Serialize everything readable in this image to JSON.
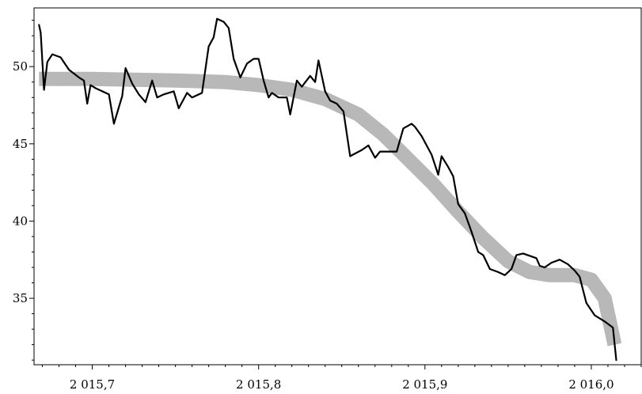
{
  "chart_data": {
    "type": "line",
    "title": "",
    "xlabel": "",
    "ylabel": "",
    "xlim": [
      2015.665,
      2016.03
    ],
    "ylim": [
      30.7,
      53.8
    ],
    "x_ticks": [
      {
        "value": 2015.7,
        "label": "2 015,7"
      },
      {
        "value": 2015.8,
        "label": "2 015,8"
      },
      {
        "value": 2015.9,
        "label": "2 015,9"
      },
      {
        "value": 2016.0,
        "label": "2 016,0"
      }
    ],
    "y_ticks": [
      {
        "value": 35,
        "label": "35"
      },
      {
        "value": 40,
        "label": "40"
      },
      {
        "value": 45,
        "label": "45"
      },
      {
        "value": 50,
        "label": "50"
      }
    ],
    "grid": false,
    "legend": "none",
    "series": [
      {
        "color": "#000000",
        "style": "thin-line",
        "points": [
          [
            2015.668,
            52.7
          ],
          [
            2015.669,
            52.2
          ],
          [
            2015.671,
            48.5
          ],
          [
            2015.673,
            50.3
          ],
          [
            2015.676,
            50.8
          ],
          [
            2015.681,
            50.6
          ],
          [
            2015.686,
            49.8
          ],
          [
            2015.692,
            49.3
          ],
          [
            2015.695,
            49.1
          ],
          [
            2015.697,
            47.6
          ],
          [
            2015.699,
            48.8
          ],
          [
            2015.702,
            48.6
          ],
          [
            2015.71,
            48.2
          ],
          [
            2015.713,
            46.3
          ],
          [
            2015.718,
            48.1
          ],
          [
            2015.72,
            49.9
          ],
          [
            2015.724,
            48.9
          ],
          [
            2015.728,
            48.2
          ],
          [
            2015.732,
            47.7
          ],
          [
            2015.736,
            49.1
          ],
          [
            2015.739,
            48.0
          ],
          [
            2015.743,
            48.2
          ],
          [
            2015.749,
            48.4
          ],
          [
            2015.752,
            47.3
          ],
          [
            2015.757,
            48.3
          ],
          [
            2015.76,
            48.0
          ],
          [
            2015.766,
            48.3
          ],
          [
            2015.77,
            51.3
          ],
          [
            2015.773,
            51.9
          ],
          [
            2015.775,
            53.1
          ],
          [
            2015.779,
            52.9
          ],
          [
            2015.782,
            52.5
          ],
          [
            2015.785,
            50.5
          ],
          [
            2015.789,
            49.3
          ],
          [
            2015.793,
            50.2
          ],
          [
            2015.797,
            50.5
          ],
          [
            2015.8,
            50.5
          ],
          [
            2015.803,
            49.1
          ],
          [
            2015.806,
            48.0
          ],
          [
            2015.808,
            48.3
          ],
          [
            2015.812,
            48.0
          ],
          [
            2015.817,
            48.0
          ],
          [
            2015.819,
            46.9
          ],
          [
            2015.823,
            49.1
          ],
          [
            2015.826,
            48.7
          ],
          [
            2015.831,
            49.4
          ],
          [
            2015.834,
            49.0
          ],
          [
            2015.836,
            50.4
          ],
          [
            2015.84,
            48.4
          ],
          [
            2015.843,
            47.8
          ],
          [
            2015.847,
            47.6
          ],
          [
            2015.851,
            47.1
          ],
          [
            2015.855,
            44.2
          ],
          [
            2015.862,
            44.6
          ],
          [
            2015.866,
            44.9
          ],
          [
            2015.87,
            44.1
          ],
          [
            2015.873,
            44.5
          ],
          [
            2015.878,
            44.5
          ],
          [
            2015.883,
            44.5
          ],
          [
            2015.887,
            46.0
          ],
          [
            2015.892,
            46.3
          ],
          [
            2015.894,
            46.1
          ],
          [
            2015.898,
            45.5
          ],
          [
            2015.904,
            44.3
          ],
          [
            2015.908,
            43.0
          ],
          [
            2015.91,
            44.2
          ],
          [
            2015.914,
            43.5
          ],
          [
            2015.917,
            42.9
          ],
          [
            2015.92,
            41.1
          ],
          [
            2015.924,
            40.5
          ],
          [
            2015.928,
            39.3
          ],
          [
            2015.932,
            38.0
          ],
          [
            2015.935,
            37.8
          ],
          [
            2015.939,
            36.9
          ],
          [
            2015.944,
            36.7
          ],
          [
            2015.948,
            36.5
          ],
          [
            2015.952,
            36.9
          ],
          [
            2015.955,
            37.8
          ],
          [
            2015.959,
            37.9
          ],
          [
            2015.967,
            37.6
          ],
          [
            2015.969,
            37.1
          ],
          [
            2015.972,
            37.0
          ],
          [
            2015.976,
            37.3
          ],
          [
            2015.981,
            37.5
          ],
          [
            2015.986,
            37.2
          ],
          [
            2015.99,
            36.8
          ],
          [
            2015.993,
            36.4
          ],
          [
            2015.997,
            34.7
          ],
          [
            2016.002,
            33.9
          ],
          [
            2016.008,
            33.5
          ],
          [
            2016.013,
            33.1
          ],
          [
            2016.015,
            31.0
          ]
        ]
      },
      {
        "color": "#b8b8b8",
        "style": "thick-band",
        "points": [
          [
            2015.668,
            49.2
          ],
          [
            2015.7,
            49.2
          ],
          [
            2015.75,
            49.1
          ],
          [
            2015.78,
            49.0
          ],
          [
            2015.8,
            48.8
          ],
          [
            2015.82,
            48.5
          ],
          [
            2015.84,
            47.9
          ],
          [
            2015.86,
            46.9
          ],
          [
            2015.875,
            45.6
          ],
          [
            2015.89,
            44.0
          ],
          [
            2015.905,
            42.4
          ],
          [
            2015.92,
            40.6
          ],
          [
            2015.935,
            38.9
          ],
          [
            2015.95,
            37.4
          ],
          [
            2015.963,
            36.7
          ],
          [
            2015.975,
            36.5
          ],
          [
            2015.99,
            36.5
          ],
          [
            2016.0,
            36.2
          ],
          [
            2016.008,
            35.0
          ],
          [
            2016.014,
            32.0
          ]
        ]
      }
    ]
  }
}
